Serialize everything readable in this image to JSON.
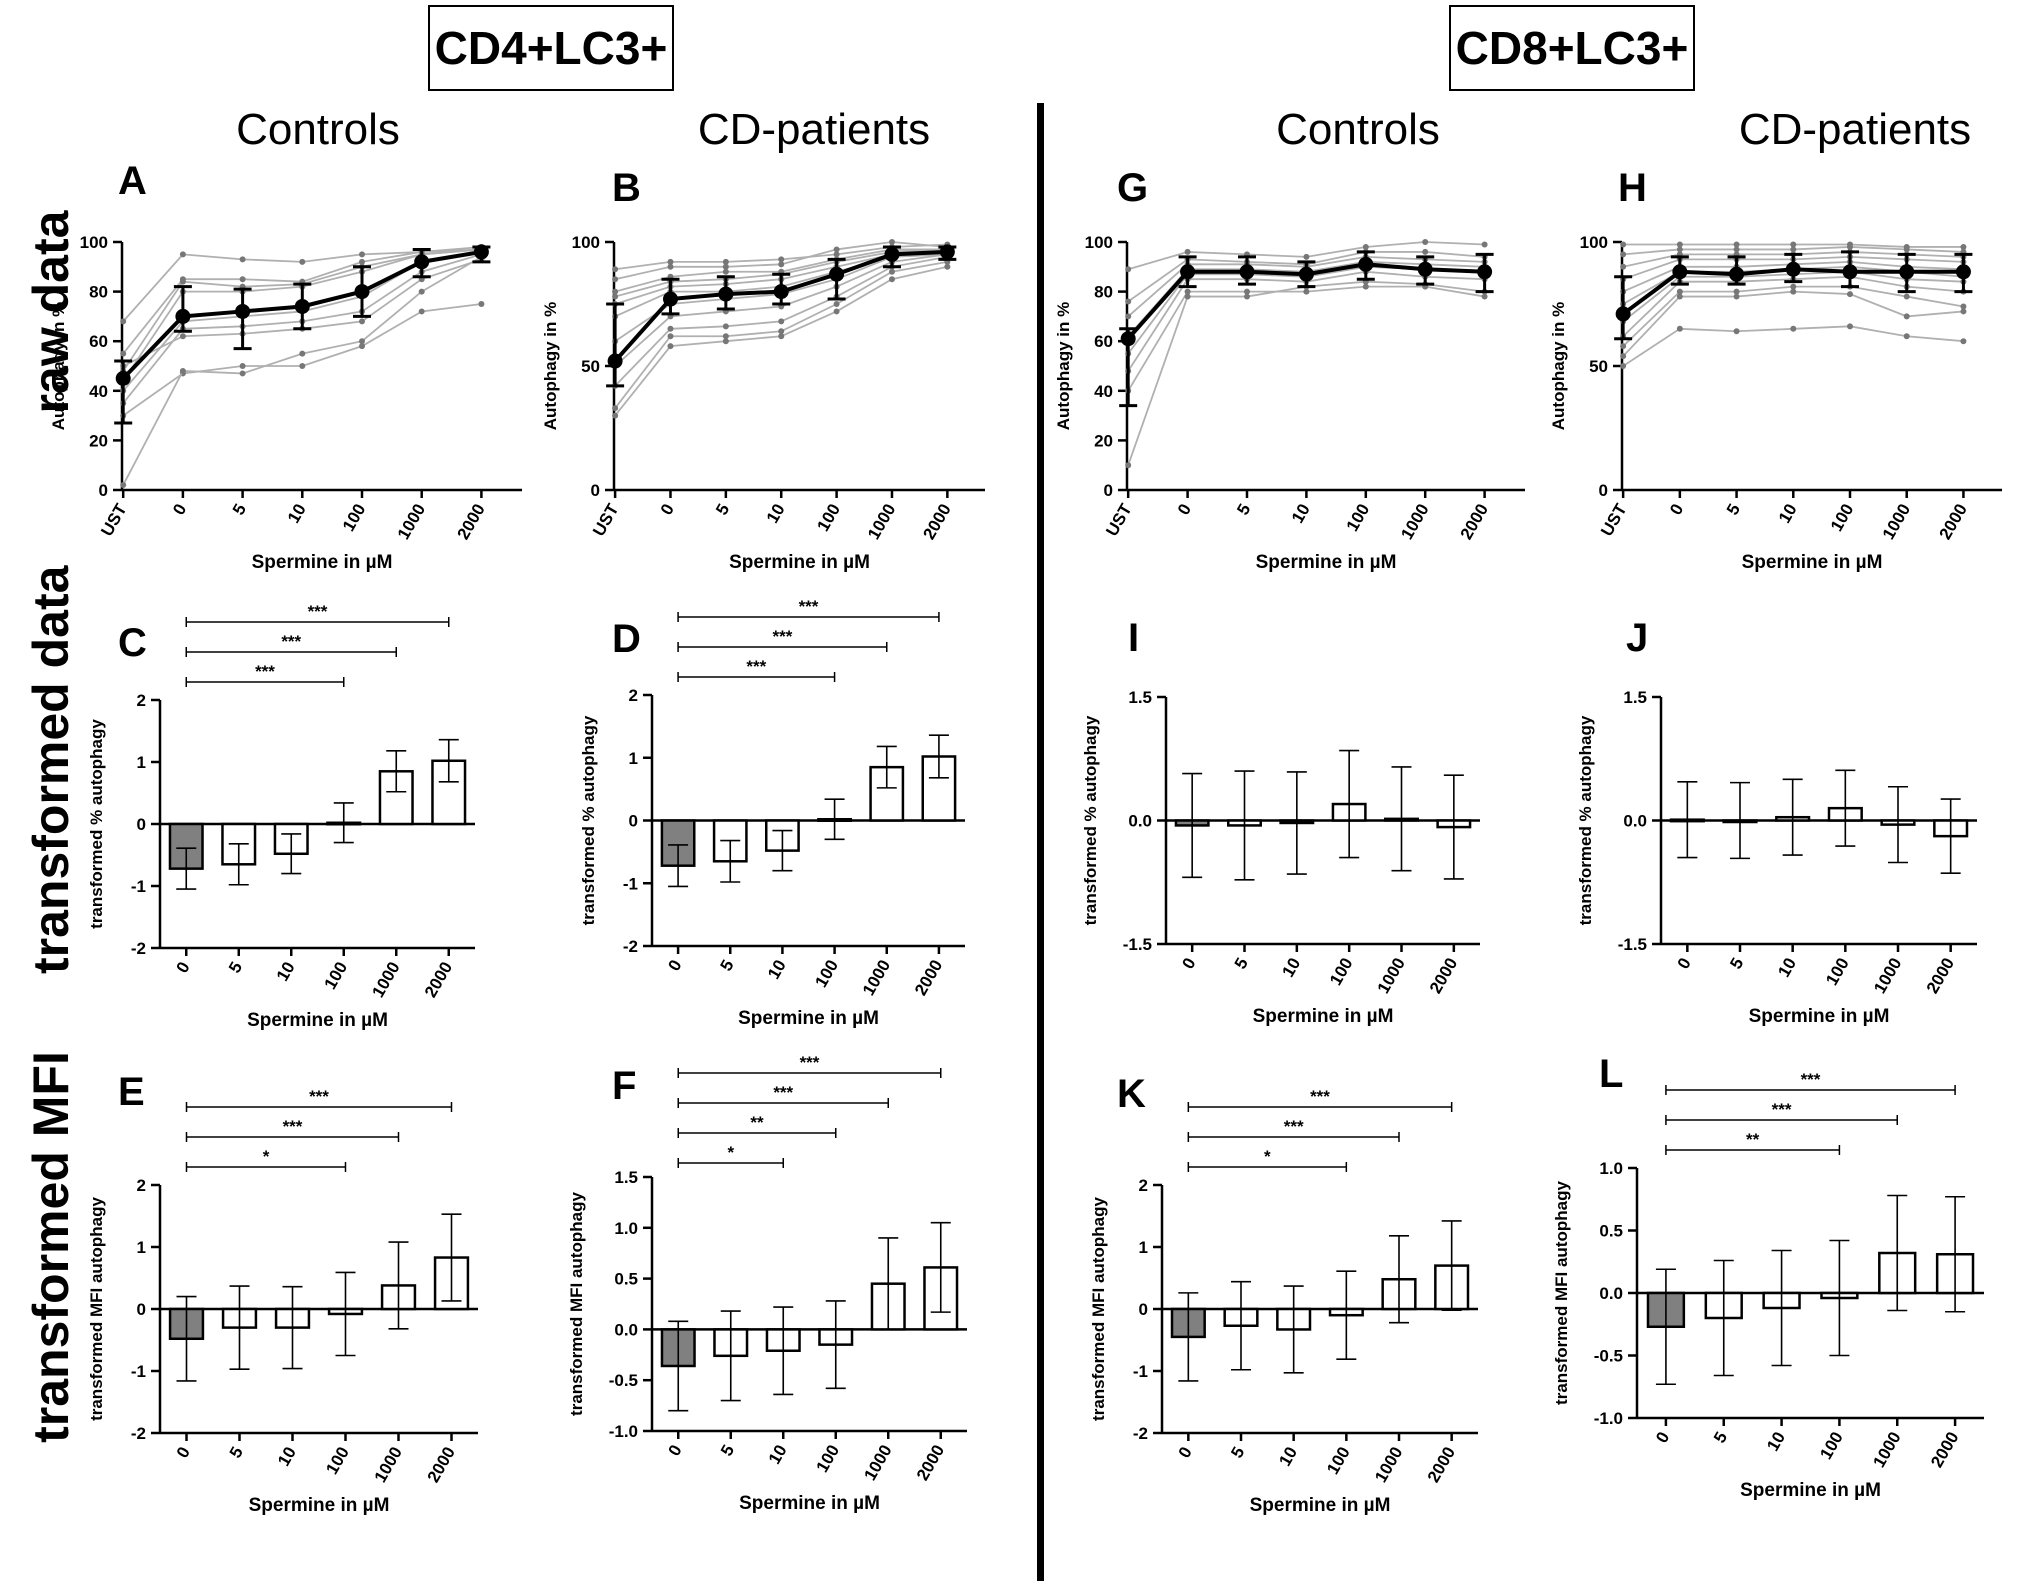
{
  "figure": {
    "group_headers": [
      "CD4+LC3+",
      "CD8+LC3+"
    ],
    "column_titles": [
      "Controls",
      "CD-patients",
      "Controls",
      "CD-patients"
    ],
    "row_labels": [
      "raw data",
      "transformed data",
      "transformed MFI"
    ]
  },
  "chart_data": [
    {
      "panel": "A",
      "type": "line",
      "group": "CD4+LC3+",
      "cohort": "Controls",
      "xlabel": "Spermine in µM",
      "ylabel": "Autophagy in %",
      "categories": [
        "UST",
        "0",
        "5",
        "10",
        "100",
        "1000",
        "2000"
      ],
      "ylim": [
        0,
        100
      ],
      "yticks": [
        0,
        20,
        40,
        60,
        80,
        100
      ],
      "mean": [
        45,
        70,
        72,
        74,
        80,
        92,
        96
      ],
      "err_low": [
        27,
        64,
        57,
        65,
        70,
        86,
        92
      ],
      "err_high": [
        52,
        82,
        81,
        83,
        90,
        97,
        98
      ],
      "individuals": [
        [
          68,
          95,
          93,
          92,
          95,
          96,
          97
        ],
        [
          55,
          85,
          85,
          84,
          92,
          96,
          98
        ],
        [
          48,
          84,
          82,
          83,
          90,
          95,
          97
        ],
        [
          44,
          80,
          80,
          82,
          88,
          95,
          97
        ],
        [
          40,
          68,
          70,
          72,
          78,
          92,
          96
        ],
        [
          35,
          65,
          66,
          68,
          72,
          88,
          95
        ],
        [
          50,
          62,
          63,
          65,
          68,
          85,
          93
        ],
        [
          30,
          47,
          50,
          50,
          58,
          72,
          75
        ],
        [
          2,
          48,
          47,
          55,
          60,
          80,
          94
        ]
      ]
    },
    {
      "panel": "B",
      "type": "line",
      "group": "CD4+LC3+",
      "cohort": "CD-patients",
      "xlabel": "Spermine in µM",
      "ylabel": "Autophagy in %",
      "categories": [
        "UST",
        "0",
        "5",
        "10",
        "100",
        "1000",
        "2000"
      ],
      "ylim": [
        0,
        100
      ],
      "yticks": [
        0,
        50,
        100
      ],
      "mean": [
        52,
        77,
        79,
        80,
        87,
        95,
        96
      ],
      "err_low": [
        42,
        71,
        73,
        75,
        77,
        90,
        93
      ],
      "err_high": [
        75,
        85,
        86,
        87,
        93,
        98,
        98
      ],
      "individuals": [
        [
          89,
          92,
          92,
          93,
          95,
          98,
          99
        ],
        [
          85,
          90,
          90,
          91,
          97,
          100,
          98
        ],
        [
          80,
          86,
          88,
          88,
          93,
          97,
          97
        ],
        [
          78,
          84,
          85,
          87,
          92,
          96,
          97
        ],
        [
          75,
          82,
          83,
          85,
          90,
          95,
          96
        ],
        [
          70,
          80,
          80,
          82,
          88,
          94,
          96
        ],
        [
          60,
          75,
          77,
          79,
          85,
          94,
          95
        ],
        [
          50,
          70,
          72,
          74,
          82,
          92,
          95
        ],
        [
          42,
          65,
          66,
          68,
          78,
          90,
          94
        ],
        [
          33,
          62,
          62,
          64,
          75,
          88,
          92
        ],
        [
          30,
          58,
          60,
          62,
          72,
          85,
          90
        ]
      ]
    },
    {
      "panel": "G",
      "type": "line",
      "group": "CD8+LC3+",
      "cohort": "Controls",
      "xlabel": "Spermine in µM",
      "ylabel": "Autophagy in %",
      "categories": [
        "UST",
        "0",
        "5",
        "10",
        "100",
        "1000",
        "2000"
      ],
      "ylim": [
        0,
        100
      ],
      "yticks": [
        0,
        20,
        40,
        60,
        80,
        100
      ],
      "mean": [
        61,
        88,
        88,
        87,
        91,
        89,
        88
      ],
      "err_low": [
        34,
        82,
        83,
        82,
        85,
        83,
        80
      ],
      "err_high": [
        65,
        94,
        94,
        92,
        96,
        94,
        95
      ],
      "individuals": [
        [
          89,
          96,
          95,
          94,
          98,
          100,
          99
        ],
        [
          76,
          93,
          92,
          91,
          96,
          96,
          94
        ],
        [
          70,
          91,
          91,
          90,
          94,
          93,
          92
        ],
        [
          62,
          89,
          89,
          88,
          92,
          91,
          90
        ],
        [
          55,
          87,
          87,
          86,
          90,
          89,
          88
        ],
        [
          48,
          85,
          85,
          84,
          88,
          86,
          85
        ],
        [
          40,
          80,
          80,
          80,
          82,
          82,
          78
        ],
        [
          10,
          78,
          78,
          82,
          84,
          83,
          80
        ]
      ]
    },
    {
      "panel": "H",
      "type": "line",
      "group": "CD8+LC3+",
      "cohort": "CD-patients",
      "xlabel": "Spermine in µM",
      "ylabel": "Autophagy in %",
      "categories": [
        "UST",
        "0",
        "5",
        "10",
        "100",
        "1000",
        "2000"
      ],
      "ylim": [
        0,
        100
      ],
      "yticks": [
        0,
        50,
        100
      ],
      "mean": [
        71,
        88,
        87,
        89,
        88,
        88,
        88
      ],
      "err_low": [
        61,
        83,
        83,
        84,
        82,
        80,
        80
      ],
      "err_high": [
        86,
        94,
        94,
        95,
        96,
        95,
        95
      ],
      "individuals": [
        [
          99,
          99,
          99,
          99,
          99,
          98,
          98
        ],
        [
          95,
          97,
          97,
          97,
          98,
          97,
          96
        ],
        [
          90,
          95,
          95,
          95,
          96,
          95,
          94
        ],
        [
          85,
          93,
          93,
          93,
          94,
          93,
          92
        ],
        [
          80,
          90,
          90,
          91,
          92,
          90,
          89
        ],
        [
          75,
          88,
          88,
          89,
          90,
          88,
          86
        ],
        [
          68,
          86,
          86,
          87,
          88,
          85,
          84
        ],
        [
          62,
          84,
          84,
          85,
          86,
          82,
          80
        ],
        [
          58,
          80,
          80,
          82,
          82,
          78,
          74
        ],
        [
          54,
          78,
          78,
          80,
          79,
          70,
          72
        ],
        [
          50,
          65,
          64,
          65,
          66,
          62,
          60
        ]
      ]
    },
    {
      "panel": "C",
      "type": "bar",
      "group": "CD4+LC3+",
      "cohort": "Controls",
      "xlabel": "Spermine in µM",
      "ylabel": "transformed % autophagy",
      "categories": [
        "0",
        "5",
        "10",
        "100",
        "1000",
        "2000"
      ],
      "ylim": [
        -2,
        2
      ],
      "yticks": [
        -2,
        -1,
        0,
        1,
        2
      ],
      "values": [
        -0.72,
        -0.65,
        -0.48,
        0.02,
        0.85,
        1.02
      ],
      "err": [
        0.33,
        0.33,
        0.32,
        0.32,
        0.33,
        0.34
      ],
      "significance": [
        {
          "from": "0",
          "to": "2000",
          "label": "***"
        },
        {
          "from": "0",
          "to": "1000",
          "label": "***"
        },
        {
          "from": "0",
          "to": "100",
          "label": "***"
        }
      ]
    },
    {
      "panel": "D",
      "type": "bar",
      "group": "CD4+LC3+",
      "cohort": "CD-patients",
      "xlabel": "Spermine in µM",
      "ylabel": "transformed % autophagy",
      "categories": [
        "0",
        "5",
        "10",
        "100",
        "1000",
        "2000"
      ],
      "ylim": [
        -2,
        2
      ],
      "yticks": [
        -2,
        -1,
        0,
        1,
        2
      ],
      "values": [
        -0.72,
        -0.65,
        -0.48,
        0.02,
        0.85,
        1.02
      ],
      "err": [
        0.33,
        0.33,
        0.32,
        0.32,
        0.33,
        0.34
      ],
      "significance": [
        {
          "from": "0",
          "to": "2000",
          "label": "***"
        },
        {
          "from": "0",
          "to": "1000",
          "label": "***"
        },
        {
          "from": "0",
          "to": "100",
          "label": "***"
        }
      ]
    },
    {
      "panel": "I",
      "type": "bar",
      "group": "CD8+LC3+",
      "cohort": "Controls",
      "xlabel": "Spermine in µM",
      "ylabel": "transformed % autophagy",
      "categories": [
        "0",
        "5",
        "10",
        "100",
        "1000",
        "2000"
      ],
      "ylim": [
        -1.5,
        1.5
      ],
      "yticks": [
        -1.5,
        0.0,
        1.5
      ],
      "values": [
        -0.06,
        -0.06,
        -0.03,
        0.2,
        0.02,
        -0.08
      ],
      "err": [
        0.63,
        0.66,
        0.62,
        0.65,
        0.63,
        0.63
      ],
      "significance": []
    },
    {
      "panel": "J",
      "type": "bar",
      "group": "CD8+LC3+",
      "cohort": "CD-patients",
      "xlabel": "Spermine in µM",
      "ylabel": "transformed % autophagy",
      "categories": [
        "0",
        "5",
        "10",
        "100",
        "1000",
        "2000"
      ],
      "ylim": [
        -1.5,
        1.5
      ],
      "yticks": [
        -1.5,
        0.0,
        1.5
      ],
      "values": [
        0.01,
        0.0,
        0.04,
        0.15,
        -0.05,
        -0.19
      ],
      "err": [
        0.46,
        0.46,
        0.46,
        0.46,
        0.46,
        0.45
      ],
      "significance": []
    },
    {
      "panel": "E",
      "type": "bar",
      "group": "CD4+LC3+",
      "cohort": "Controls",
      "xlabel": "Spermine in µM",
      "ylabel": "transformed MFI autophagy",
      "categories": [
        "0",
        "5",
        "10",
        "100",
        "1000",
        "2000"
      ],
      "ylim": [
        -2,
        2
      ],
      "yticks": [
        -2,
        -1,
        0,
        1,
        2
      ],
      "values": [
        -0.48,
        -0.3,
        -0.3,
        -0.08,
        0.38,
        0.83
      ],
      "err": [
        0.68,
        0.67,
        0.66,
        0.67,
        0.7,
        0.7
      ],
      "significance": [
        {
          "from": "0",
          "to": "2000",
          "label": "***"
        },
        {
          "from": "0",
          "to": "1000",
          "label": "***"
        },
        {
          "from": "0",
          "to": "100",
          "label": "*"
        }
      ]
    },
    {
      "panel": "F",
      "type": "bar",
      "group": "CD4+LC3+",
      "cohort": "CD-patients",
      "xlabel": "Spermine in µM",
      "ylabel": "transformed MFI autophagy",
      "categories": [
        "0",
        "5",
        "10",
        "100",
        "1000",
        "2000"
      ],
      "ylim": [
        -1.0,
        1.5
      ],
      "yticks": [
        -1.0,
        -0.5,
        0.0,
        0.5,
        1.0,
        1.5
      ],
      "values": [
        -0.36,
        -0.26,
        -0.21,
        -0.15,
        0.45,
        0.61
      ],
      "err": [
        0.44,
        0.44,
        0.43,
        0.43,
        0.45,
        0.44
      ],
      "significance": [
        {
          "from": "0",
          "to": "2000",
          "label": "***"
        },
        {
          "from": "0",
          "to": "1000",
          "label": "***"
        },
        {
          "from": "0",
          "to": "100",
          "label": "**"
        },
        {
          "from": "0",
          "to": "10",
          "label": "*"
        }
      ]
    },
    {
      "panel": "K",
      "type": "bar",
      "group": "CD8+LC3+",
      "cohort": "Controls",
      "xlabel": "Spermine in µM",
      "ylabel": "transformed MFI autophagy",
      "categories": [
        "0",
        "5",
        "10",
        "100",
        "1000",
        "2000"
      ],
      "ylim": [
        -2,
        2
      ],
      "yticks": [
        -2,
        -1,
        0,
        1,
        2
      ],
      "values": [
        -0.45,
        -0.27,
        -0.33,
        -0.1,
        0.48,
        0.7
      ],
      "err": [
        0.71,
        0.71,
        0.7,
        0.71,
        0.7,
        0.72
      ],
      "significance": [
        {
          "from": "0",
          "to": "2000",
          "label": "***"
        },
        {
          "from": "0",
          "to": "1000",
          "label": "***"
        },
        {
          "from": "0",
          "to": "100",
          "label": "*"
        }
      ]
    },
    {
      "panel": "L",
      "type": "bar",
      "group": "CD8+LC3+",
      "cohort": "CD-patients",
      "xlabel": "Spermine in µM",
      "ylabel": "transformed MFI autophagy",
      "categories": [
        "0",
        "5",
        "10",
        "100",
        "1000",
        "2000"
      ],
      "ylim": [
        -1.0,
        1.0
      ],
      "yticks": [
        -1.0,
        -0.5,
        0.0,
        0.5,
        1.0
      ],
      "values": [
        -0.27,
        -0.2,
        -0.12,
        -0.04,
        0.32,
        0.31
      ],
      "err": [
        0.46,
        0.46,
        0.46,
        0.46,
        0.46,
        0.46
      ],
      "significance": [
        {
          "from": "0",
          "to": "2000",
          "label": "***"
        },
        {
          "from": "0",
          "to": "1000",
          "label": "***"
        },
        {
          "from": "0",
          "to": "100",
          "label": "**"
        }
      ]
    }
  ],
  "style": {
    "first_bar_fill": "#808080",
    "bar_fill": "#ffffff",
    "individual_line_color": "#b0b0b0",
    "individual_point_color": "#777777",
    "mean_color": "#000000"
  }
}
